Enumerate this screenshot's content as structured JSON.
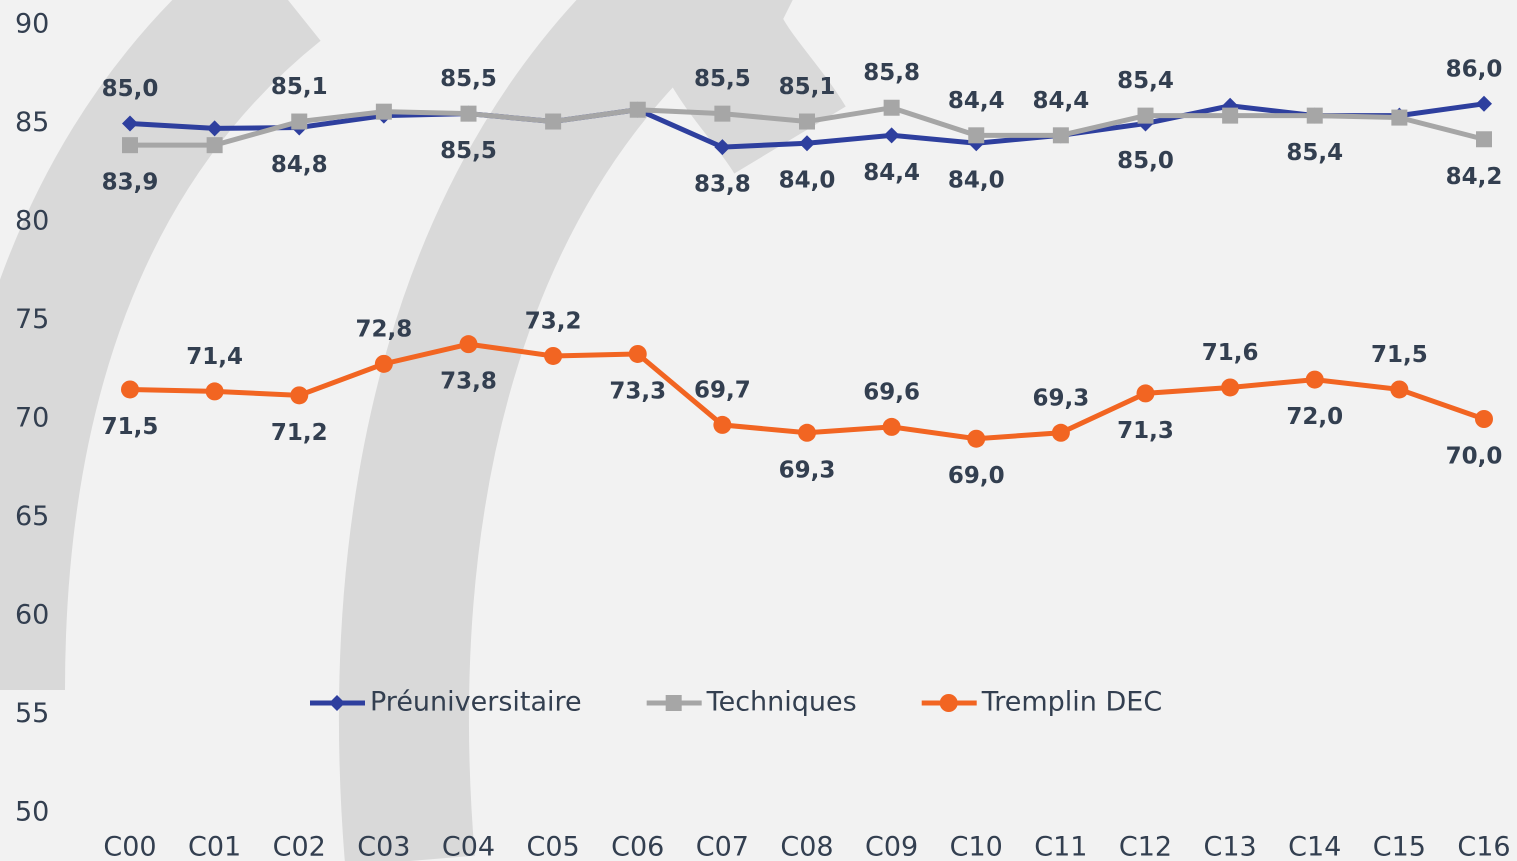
{
  "chart_data": {
    "type": "line",
    "categories": [
      "C00",
      "C01",
      "C02",
      "C03",
      "C04",
      "C05",
      "C06",
      "C07",
      "C08",
      "C09",
      "C10",
      "C11",
      "C12",
      "C13",
      "C14",
      "C15",
      "C16"
    ],
    "ylim": [
      50,
      90
    ],
    "yticks": [
      50,
      55,
      60,
      65,
      70,
      75,
      80,
      85,
      90
    ],
    "series": [
      {
        "name": "Préuniversitaire",
        "color": "#2e3f9e",
        "marker": "diamond",
        "values": [
          85.0,
          84.75,
          84.8,
          85.4,
          85.5,
          85.1,
          85.7,
          83.8,
          84.0,
          84.4,
          84.0,
          84.4,
          85.0,
          85.9,
          85.4,
          85.4,
          86.0
        ],
        "value_labels": [
          "85,0",
          null,
          "84,8",
          null,
          "85,5",
          null,
          null,
          "83,8",
          "84,0",
          "84,4",
          "84,0",
          null,
          "85,0",
          null,
          "85,4",
          null,
          "86,0"
        ]
      },
      {
        "name": "Techniques",
        "color": "#a6a6a6",
        "marker": "square",
        "values": [
          83.9,
          83.9,
          85.1,
          85.6,
          85.5,
          85.1,
          85.7,
          85.5,
          85.1,
          85.8,
          84.4,
          84.4,
          85.4,
          85.4,
          85.4,
          85.3,
          84.2
        ],
        "value_labels": [
          "83,9",
          null,
          "85,1",
          null,
          "85,5",
          null,
          null,
          "85,5",
          "85,1",
          "85,8",
          "84,4",
          "84,4",
          "85,4",
          null,
          null,
          null,
          "84,2"
        ]
      },
      {
        "name": "Tremplin DEC",
        "color": "#f26522",
        "marker": "circle",
        "values": [
          71.5,
          71.4,
          71.2,
          72.8,
          73.8,
          73.2,
          73.3,
          69.7,
          69.3,
          69.6,
          69.0,
          69.3,
          71.3,
          71.6,
          72.0,
          71.5,
          70.0
        ],
        "value_labels": [
          "71,5",
          "71,4",
          "71,2",
          "72,8",
          "73,8",
          "73,2",
          "73,3",
          "69,7",
          "69,3",
          "69,6",
          "69,0",
          "69,3",
          "71,3",
          "71,6",
          "72,0",
          "71,5",
          "70,0"
        ]
      }
    ]
  }
}
